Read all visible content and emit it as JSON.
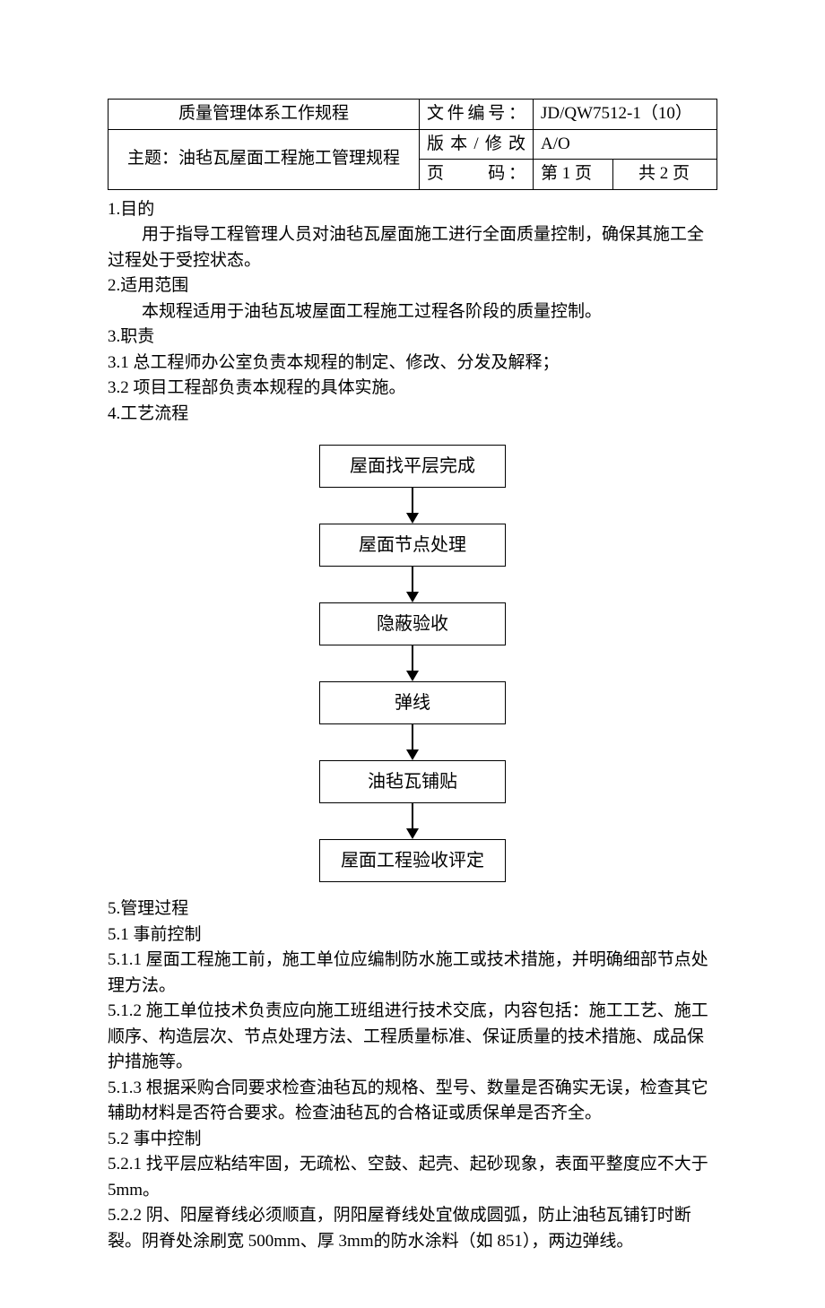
{
  "header": {
    "title": "质量管理体系工作规程",
    "subject_label": "主题：",
    "subject": "油毡瓦屋面工程施工管理规程",
    "doc_no_label": "文件编号：",
    "doc_no": "JD/QW7512-1（10）",
    "version_label": "版本/修改",
    "version": "A/O",
    "page_label": "页　　码：",
    "page_current": "第 1 页",
    "page_total": "共 2 页"
  },
  "sections": {
    "s1_title": "1.目的",
    "s1_text": "用于指导工程管理人员对油毡瓦屋面施工进行全面质量控制，确保其施工全过程处于受控状态。",
    "s2_title": "2.适用范围",
    "s2_text": "本规程适用于油毡瓦坡屋面工程施工过程各阶段的质量控制。",
    "s3_title": "3.职责",
    "s3_1": "3.1 总工程师办公室负责本规程的制定、修改、分发及解释；",
    "s3_2": "3.2 项目工程部负责本规程的具体实施。",
    "s4_title": "4.工艺流程",
    "s5_title": "5.管理过程",
    "s5_1_title": "5.1 事前控制",
    "s5_1_1": "5.1.1 屋面工程施工前，施工单位应编制防水施工或技术措施，并明确细部节点处理方法。",
    "s5_1_2": "5.1.2 施工单位技术负责应向施工班组进行技术交底，内容包括：施工工艺、施工顺序、构造层次、节点处理方法、工程质量标准、保证质量的技术措施、成品保护措施等。",
    "s5_1_3": "5.1.3 根据采购合同要求检查油毡瓦的规格、型号、数量是否确实无误，检查其它辅助材料是否符合要求。检查油毡瓦的合格证或质保单是否齐全。",
    "s5_2_title": "5.2 事中控制",
    "s5_2_1": "5.2.1 找平层应粘结牢固，无疏松、空鼓、起壳、起砂现象，表面平整度应不大于 5mm。",
    "s5_2_2": "5.2.2 阴、阳屋脊线必须顺直，阴阳屋脊线处宜做成圆弧，防止油毡瓦铺钉时断裂。阴脊处涂刷宽 500mm、厚 3mm的防水涂料（如 851），两边弹线。"
  },
  "flowchart": {
    "nodes": [
      "屋面找平层完成",
      "屋面节点处理",
      "隐蔽验收",
      "弹线",
      "油毡瓦铺贴",
      "屋面工程验收评定"
    ],
    "box_border_color": "#000000",
    "arrow_color": "#000000",
    "background_color": "#ffffff",
    "fontsize": 20
  }
}
